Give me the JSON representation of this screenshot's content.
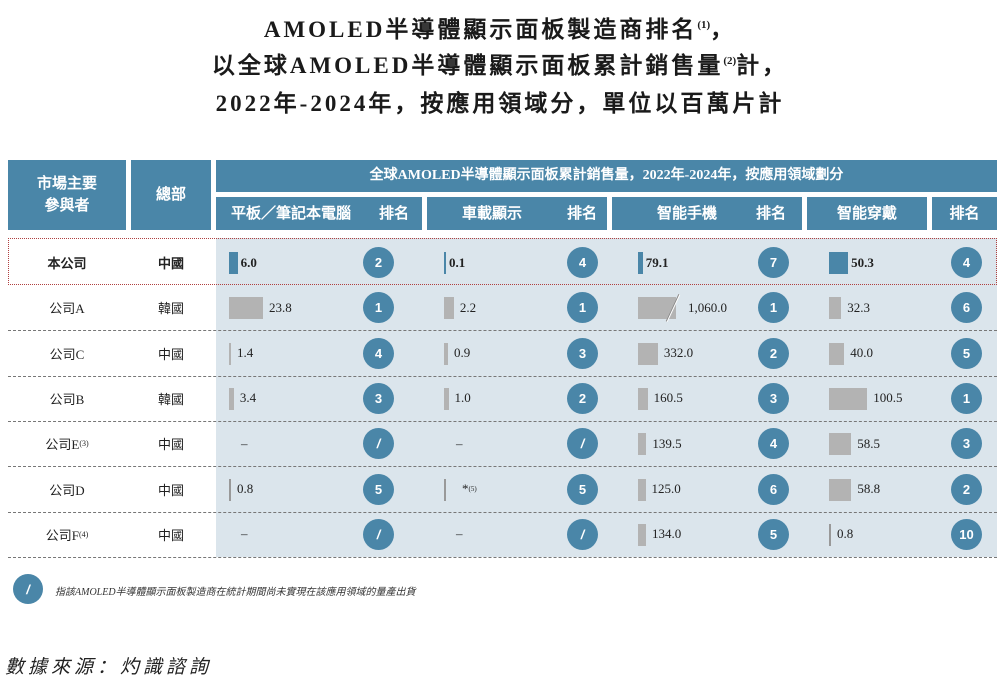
{
  "title": {
    "line1": "AMOLED半導體顯示面板製造商排名",
    "line1_sup": "(1)",
    "line1_end": "，",
    "line2": "以全球AMOLED半導體顯示面板累計銷售量",
    "line2_sup": "(2)",
    "line2_end": "計，",
    "line3": "2022年-2024年，按應用領域分，單位以百萬片計"
  },
  "header": {
    "players": "市場主要\n參與者",
    "hq": "總部",
    "group": "全球AMOLED半導體顯示面板累計銷售量，2022年-2024年，按應用領域劃分",
    "columns": [
      "平板／筆記本電腦",
      "排名",
      "車載顯示",
      "排名",
      "智能手機",
      "排名",
      "智能穿戴",
      "排名"
    ]
  },
  "colors": {
    "accent": "#4a86a8",
    "own_bar": "#4a86a8",
    "other_bar": "#b3b3b3",
    "data_bg": "#dbe5ec",
    "highlight_border": "#b04040"
  },
  "rows": [
    {
      "name": "本公司",
      "sup": "",
      "hq": "中國",
      "own": true,
      "cells": [
        {
          "value": "6.0",
          "num": 6.0,
          "rank": "2"
        },
        {
          "value": "0.1",
          "num": 0.1,
          "rank": "4"
        },
        {
          "value": "79.1",
          "num": 79.1,
          "rank": "7"
        },
        {
          "value": "50.3",
          "num": 50.3,
          "rank": "4"
        }
      ]
    },
    {
      "name": "公司A",
      "sup": "",
      "hq": "韓國",
      "own": false,
      "cells": [
        {
          "value": "23.8",
          "num": 23.8,
          "rank": "1"
        },
        {
          "value": "2.2",
          "num": 2.2,
          "rank": "1"
        },
        {
          "value": "1,060.0",
          "num": 1060.0,
          "rank": "1",
          "broken": true
        },
        {
          "value": "32.3",
          "num": 32.3,
          "rank": "6"
        }
      ]
    },
    {
      "name": "公司C",
      "sup": "",
      "hq": "中國",
      "own": false,
      "cells": [
        {
          "value": "1.4",
          "num": 1.4,
          "rank": "4"
        },
        {
          "value": "0.9",
          "num": 0.9,
          "rank": "3"
        },
        {
          "value": "332.0",
          "num": 332.0,
          "rank": "2"
        },
        {
          "value": "40.0",
          "num": 40.0,
          "rank": "5"
        }
      ]
    },
    {
      "name": "公司B",
      "sup": "",
      "hq": "韓國",
      "own": false,
      "cells": [
        {
          "value": "3.4",
          "num": 3.4,
          "rank": "3"
        },
        {
          "value": "1.0",
          "num": 1.0,
          "rank": "2"
        },
        {
          "value": "160.5",
          "num": 160.5,
          "rank": "3"
        },
        {
          "value": "100.5",
          "num": 100.5,
          "rank": "1"
        }
      ]
    },
    {
      "name": "公司E",
      "sup": "(3)",
      "hq": "中國",
      "own": false,
      "cells": [
        {
          "value": "–",
          "num": null,
          "rank": "/"
        },
        {
          "value": "–",
          "num": null,
          "rank": "/"
        },
        {
          "value": "139.5",
          "num": 139.5,
          "rank": "4"
        },
        {
          "value": "58.5",
          "num": 58.5,
          "rank": "3"
        }
      ]
    },
    {
      "name": "公司D",
      "sup": "",
      "hq": "中國",
      "own": false,
      "cells": [
        {
          "value": "0.8",
          "num": 0.8,
          "rank": "5"
        },
        {
          "value": "*",
          "sup": "(5)",
          "num": 0.05,
          "rank": "5"
        },
        {
          "value": "125.0",
          "num": 125.0,
          "rank": "6"
        },
        {
          "value": "58.8",
          "num": 58.8,
          "rank": "2"
        }
      ]
    },
    {
      "name": "公司F",
      "sup": "(4)",
      "hq": "中國",
      "own": false,
      "cells": [
        {
          "value": "–",
          "num": null,
          "rank": "/"
        },
        {
          "value": "–",
          "num": null,
          "rank": "/"
        },
        {
          "value": "134.0",
          "num": 134.0,
          "rank": "5"
        },
        {
          "value": "0.8",
          "num": 0.8,
          "rank": "10"
        }
      ]
    }
  ],
  "legend": {
    "symbol": "/",
    "text": "指該AMOLED半導體顯示面板製造商在統計期間尚未實現在該應用領域的量產出貨"
  },
  "source": "數據來源：灼識諮詢"
}
